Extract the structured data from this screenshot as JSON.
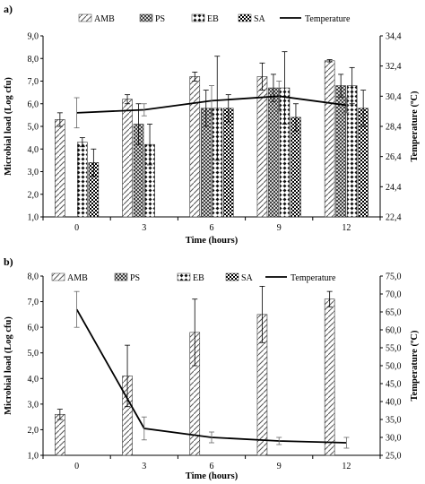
{
  "chart_data": [
    {
      "type": "bar",
      "panel_label": "a)",
      "categories": [
        "0",
        "3",
        "6",
        "9",
        "12"
      ],
      "series": [
        {
          "name": "AMB",
          "values": [
            5.3,
            6.2,
            7.2,
            7.2,
            7.9
          ],
          "err": [
            0.3,
            0.2,
            0.2,
            0.6,
            0.05
          ]
        },
        {
          "name": "PS",
          "values": [
            null,
            5.1,
            5.8,
            6.7,
            6.8
          ],
          "err": [
            null,
            0.9,
            0.8,
            0.6,
            0.5
          ]
        },
        {
          "name": "EB",
          "values": [
            4.3,
            4.2,
            5.8,
            6.7,
            6.8
          ],
          "err": [
            0.2,
            0.9,
            2.3,
            1.6,
            0.8
          ]
        },
        {
          "name": "SA",
          "values": [
            3.4,
            null,
            5.8,
            5.4,
            5.8
          ],
          "err": [
            0.6,
            null,
            0.6,
            0.6,
            0.8
          ]
        }
      ],
      "line_series": {
        "name": "Temperature",
        "values": [
          29.3,
          29.5,
          30.1,
          30.4,
          29.8
        ],
        "err": [
          1.0,
          0.4,
          1.0,
          1.0,
          0.5
        ]
      },
      "xlabel": "Time (hours)",
      "ylabel": "Microbial load (Log cfu)",
      "y2label": "Temperature (ºC)",
      "ylim": [
        1.0,
        9.0
      ],
      "y2lim": [
        22.4,
        34.4
      ],
      "yticks": [
        "1,0",
        "2,0",
        "3,0",
        "4,0",
        "5,0",
        "6,0",
        "7,0",
        "8,0",
        "9,0"
      ],
      "y2ticks": [
        "22,4",
        "24,4",
        "26,4",
        "28,4",
        "30,4",
        "32,4",
        "34,4"
      ],
      "legend_position": "top"
    },
    {
      "type": "bar",
      "panel_label": "b)",
      "categories": [
        "0",
        "3",
        "6",
        "9",
        "12"
      ],
      "series": [
        {
          "name": "AMB",
          "values": [
            2.6,
            4.1,
            5.8,
            6.5,
            7.1
          ],
          "err": [
            0.2,
            1.2,
            1.3,
            1.1,
            0.3
          ]
        },
        {
          "name": "PS",
          "values": [
            null,
            null,
            null,
            null,
            null
          ],
          "err": [
            null,
            null,
            null,
            null,
            null
          ]
        },
        {
          "name": "EB",
          "values": [
            null,
            null,
            null,
            null,
            null
          ],
          "err": [
            null,
            null,
            null,
            null,
            null
          ]
        },
        {
          "name": "SA",
          "values": [
            null,
            null,
            null,
            null,
            null
          ],
          "err": [
            null,
            null,
            null,
            null,
            null
          ]
        }
      ],
      "line_series": {
        "name": "Temperature",
        "values": [
          65.7,
          32.5,
          30.0,
          29.0,
          28.5
        ],
        "err": [
          5.0,
          3.2,
          1.5,
          1.0,
          1.5
        ]
      },
      "xlabel": "Time (hours)",
      "ylabel": "Microbial load (Log cfu)",
      "y2label": "Temperature (ºC)",
      "ylim": [
        1.0,
        8.0
      ],
      "y2lim": [
        25.0,
        75.0
      ],
      "yticks": [
        "1,0",
        "2,0",
        "3,0",
        "4,0",
        "5,0",
        "6,0",
        "7,0",
        "8,0"
      ],
      "y2ticks": [
        "25,0",
        "30,0",
        "35,0",
        "40,0",
        "45,0",
        "50,0",
        "55,0",
        "60,0",
        "65,0",
        "70,0",
        "75,0"
      ],
      "legend_position": "top"
    }
  ],
  "colors": {
    "axis": "#000000",
    "bar_fill": "#ffffff",
    "line": "#000000",
    "grid": "#d0d0d0"
  }
}
